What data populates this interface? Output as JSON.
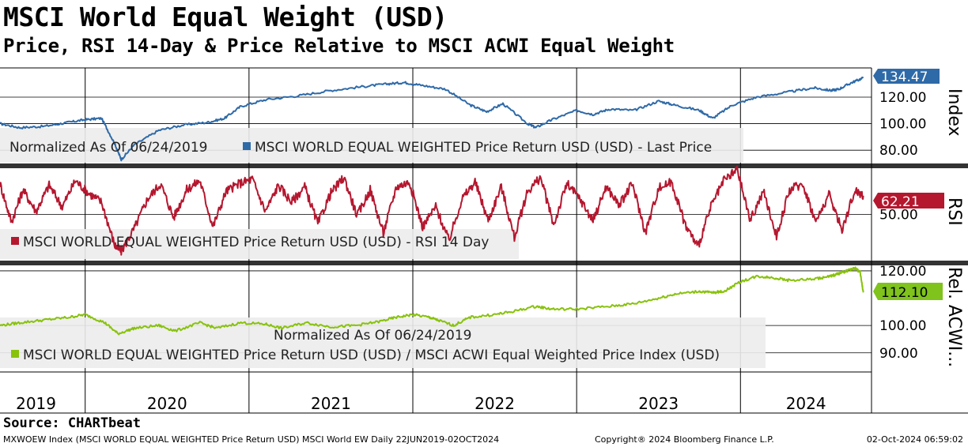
{
  "title": "MSCI World Equal Weight (USD)",
  "subtitle": "Price, RSI 14-Day & Price Relative to MSCI ACWI Equal Weight",
  "source": "Source: CHARTbeat",
  "footer": {
    "description": "MXWOEW Index (MSCI WORLD EQUAL WEIGHTED Price Return USD) MSCI World EW  Daily 22JUN2019-02OCT2024",
    "copyright": "Copyright® 2024 Bloomberg Finance L.P.",
    "timestamp": "02-Oct-2024 06:59:02"
  },
  "colors": {
    "price": "#2e6aa8",
    "rsi": "#b5172f",
    "relative": "#88c20c",
    "price_tag": "#2e6aa8",
    "rsi_tag": "#b5172f",
    "relative_tag": "#7fc31c"
  },
  "chart_data": [
    {
      "type": "line",
      "panel": "price",
      "axis_title": "Index",
      "note": "Normalized As Of 06/24/2019",
      "legend": "MSCI WORLD EQUAL WEIGHTED Price Return USD (USD) - Last Price",
      "last_value": "134.47",
      "y_ticks": [
        "120.00",
        "100.00",
        "80.00"
      ],
      "ylim": [
        70,
        142
      ],
      "x": [
        2019.48,
        2019.6,
        2019.75,
        2019.9,
        2020.0,
        2020.1,
        2020.18,
        2020.22,
        2020.3,
        2020.45,
        2020.6,
        2020.75,
        2020.85,
        2020.95,
        2021.1,
        2021.3,
        2021.5,
        2021.7,
        2021.85,
        2021.95,
        2022.05,
        2022.2,
        2022.35,
        2022.45,
        2022.55,
        2022.7,
        2022.75,
        2022.85,
        2023.0,
        2023.1,
        2023.2,
        2023.35,
        2023.5,
        2023.6,
        2023.75,
        2023.83,
        2023.95,
        2024.1,
        2024.3,
        2024.45,
        2024.55,
        2024.6,
        2024.68,
        2024.75
      ],
      "values": [
        100,
        97,
        98,
        101,
        103,
        104,
        85,
        73,
        84,
        95,
        99,
        101,
        104,
        113,
        118,
        121,
        125,
        128,
        130,
        131,
        129,
        126,
        114,
        109,
        115,
        100,
        97,
        103,
        110,
        107,
        111,
        110,
        117,
        114,
        110,
        104,
        114,
        120,
        124,
        127,
        125,
        126,
        131,
        134.47
      ]
    },
    {
      "type": "line",
      "panel": "rsi",
      "axis_title": "RSI",
      "legend": "MSCI WORLD EQUAL WEIGHTED Price Return USD (USD) - RSI 14 Day",
      "last_value": "62.21",
      "y_ticks": [
        "50.00"
      ],
      "ylim": [
        20,
        80
      ],
      "x": [
        2019.48,
        2019.55,
        2019.62,
        2019.7,
        2019.78,
        2019.86,
        2019.94,
        2020.02,
        2020.1,
        2020.18,
        2020.22,
        2020.3,
        2020.38,
        2020.46,
        2020.54,
        2020.62,
        2020.7,
        2020.78,
        2020.86,
        2020.94,
        2021.02,
        2021.1,
        2021.18,
        2021.26,
        2021.34,
        2021.42,
        2021.5,
        2021.58,
        2021.66,
        2021.74,
        2021.82,
        2021.9,
        2021.98,
        2022.06,
        2022.14,
        2022.22,
        2022.3,
        2022.38,
        2022.46,
        2022.54,
        2022.62,
        2022.7,
        2022.78,
        2022.86,
        2022.94,
        2023.02,
        2023.1,
        2023.18,
        2023.26,
        2023.34,
        2023.42,
        2023.5,
        2023.58,
        2023.66,
        2023.74,
        2023.82,
        2023.9,
        2023.98,
        2024.06,
        2024.14,
        2024.22,
        2024.3,
        2024.38,
        2024.46,
        2024.54,
        2024.62,
        2024.7,
        2024.75
      ],
      "values": [
        70,
        45,
        66,
        52,
        69,
        55,
        72,
        64,
        58,
        30,
        26,
        41,
        60,
        70,
        48,
        66,
        72,
        42,
        65,
        70,
        73,
        52,
        69,
        58,
        68,
        44,
        64,
        74,
        49,
        66,
        38,
        68,
        71,
        42,
        55,
        33,
        60,
        71,
        46,
        68,
        35,
        65,
        74,
        43,
        70,
        60,
        46,
        68,
        56,
        70,
        38,
        67,
        71,
        44,
        29,
        55,
        72,
        79,
        46,
        65,
        36,
        66,
        70,
        45,
        63,
        40,
        66,
        62.21
      ]
    },
    {
      "type": "line",
      "panel": "relative",
      "axis_title": "Rel. ACWI...",
      "note": "Normalized As Of 06/24/2019",
      "legend": "MSCI WORLD EQUAL WEIGHTED Price Return USD (USD) / MSCI ACWI Equal Weighted Price Index (USD)",
      "last_value": "112.10",
      "y_ticks": [
        "120.00",
        "100.00",
        "90.00"
      ],
      "ylim": [
        83,
        122
      ],
      "x": [
        2019.48,
        2019.6,
        2019.75,
        2019.9,
        2020.0,
        2020.12,
        2020.2,
        2020.3,
        2020.45,
        2020.55,
        2020.7,
        2020.8,
        2020.95,
        2021.1,
        2021.2,
        2021.35,
        2021.5,
        2021.65,
        2021.8,
        2021.9,
        2022.0,
        2022.1,
        2022.15,
        2022.25,
        2022.35,
        2022.5,
        2022.6,
        2022.75,
        2022.85,
        2023.0,
        2023.2,
        2023.35,
        2023.5,
        2023.6,
        2023.75,
        2023.83,
        2023.9,
        2024.0,
        2024.1,
        2024.2,
        2024.3,
        2024.45,
        2024.55,
        2024.6,
        2024.65,
        2024.7,
        2024.73,
        2024.75
      ],
      "values": [
        100,
        101,
        102,
        103,
        104,
        101,
        97,
        99,
        100,
        98,
        101,
        99,
        101,
        100.5,
        99,
        101,
        99.5,
        100,
        101.5,
        103,
        104,
        103,
        102,
        100,
        103,
        104,
        105,
        107,
        106,
        106,
        107,
        108,
        110,
        111.5,
        112.5,
        112,
        112.5,
        116,
        118,
        117.5,
        116.5,
        117,
        118,
        119,
        120,
        121,
        119.5,
        112.1
      ]
    }
  ],
  "x_axis": {
    "tick_labels": [
      "2019",
      "2020",
      "2021",
      "2022",
      "2023",
      "2024"
    ],
    "label_positions": [
      2019.7,
      2020.5,
      2021.5,
      2022.5,
      2023.5,
      2024.4
    ],
    "boundaries": [
      2020.0,
      2021.0,
      2022.0,
      2023.0,
      2024.0
    ],
    "range": [
      2019.48,
      2024.8
    ]
  }
}
